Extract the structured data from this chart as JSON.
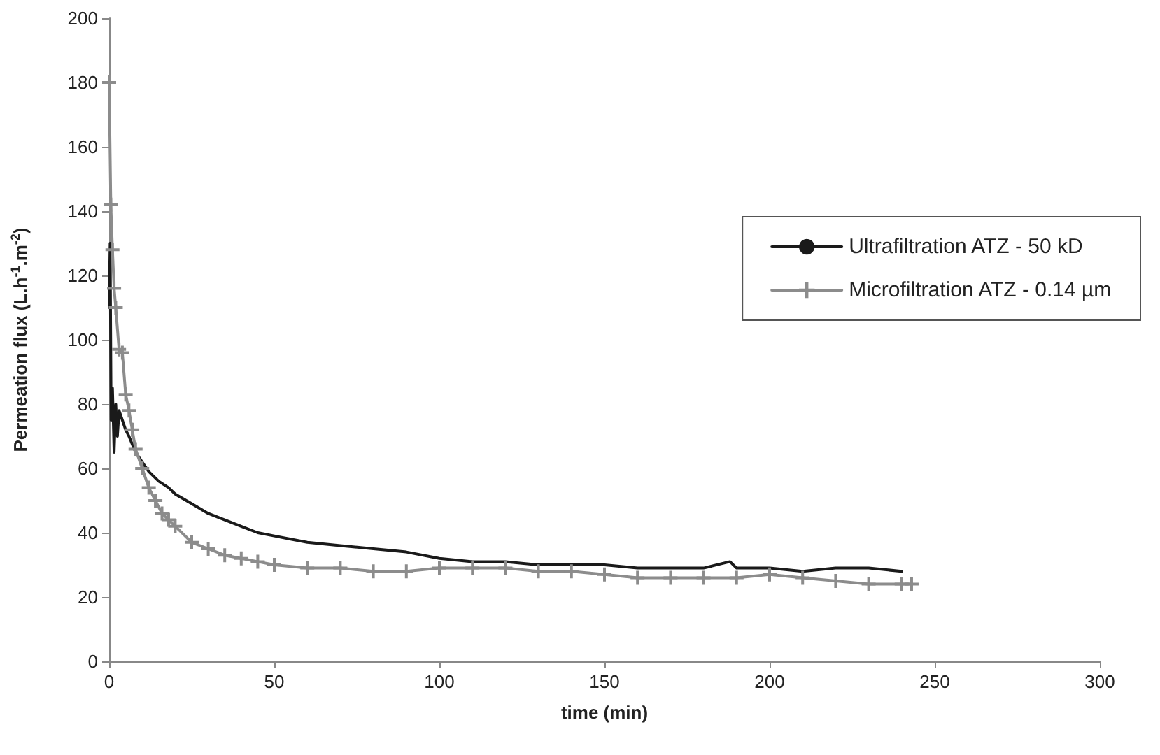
{
  "chart_data": {
    "type": "line",
    "xlabel": "time (min)",
    "ylabel": "Permeation flux (L.h$^{-1}$.m$^{-2}$)",
    "xlim": [
      0,
      300
    ],
    "xticks": [
      0,
      50,
      100,
      150,
      200,
      250,
      300
    ],
    "ylim": [
      0,
      200
    ],
    "yticks": [
      0,
      20,
      40,
      60,
      80,
      100,
      120,
      140,
      160,
      180,
      200
    ],
    "grid": false,
    "legend": "right",
    "line_style": "solid",
    "series": [
      {
        "name": "Ultrafiltration ATZ - 50 kD",
        "color": "#1a1a1a",
        "marker": "none",
        "x": [
          0,
          0.3,
          0.6,
          1,
          1.5,
          2,
          2.5,
          3,
          4,
          5,
          6,
          8,
          10,
          12,
          15,
          18,
          20,
          25,
          30,
          35,
          40,
          45,
          50,
          55,
          60,
          70,
          80,
          90,
          100,
          110,
          120,
          130,
          140,
          150,
          160,
          170,
          180,
          188,
          190,
          200,
          210,
          220,
          230,
          240
        ],
        "values": [
          110,
          130,
          75,
          85,
          65,
          80,
          70,
          78,
          75,
          72,
          70,
          65,
          62,
          59,
          56,
          54,
          52,
          49,
          46,
          44,
          42,
          40,
          39,
          38,
          37,
          36,
          35,
          34,
          32,
          31,
          31,
          30,
          30,
          30,
          29,
          29,
          29,
          31,
          29,
          29,
          28,
          29,
          29,
          28
        ]
      },
      {
        "name": "Microfiltration ATZ - 0.14 µm",
        "color": "#8c8c8c",
        "marker": "cross",
        "x": [
          0,
          0.5,
          1,
          1.5,
          2,
          3,
          4,
          5,
          6,
          7,
          8,
          10,
          12,
          14,
          16,
          18,
          20,
          25,
          30,
          35,
          40,
          45,
          50,
          60,
          70,
          80,
          90,
          100,
          110,
          120,
          130,
          140,
          150,
          160,
          170,
          180,
          190,
          200,
          210,
          220,
          230,
          240,
          243
        ],
        "values": [
          180,
          142,
          128,
          116,
          110,
          97,
          96,
          83,
          78,
          72,
          66,
          60,
          54,
          50,
          46,
          44,
          42,
          37,
          35,
          33,
          32,
          31,
          30,
          29,
          29,
          28,
          28,
          29,
          29,
          29,
          28,
          28,
          27,
          26,
          26,
          26,
          26,
          27,
          26,
          25,
          24,
          24,
          24
        ]
      }
    ]
  }
}
